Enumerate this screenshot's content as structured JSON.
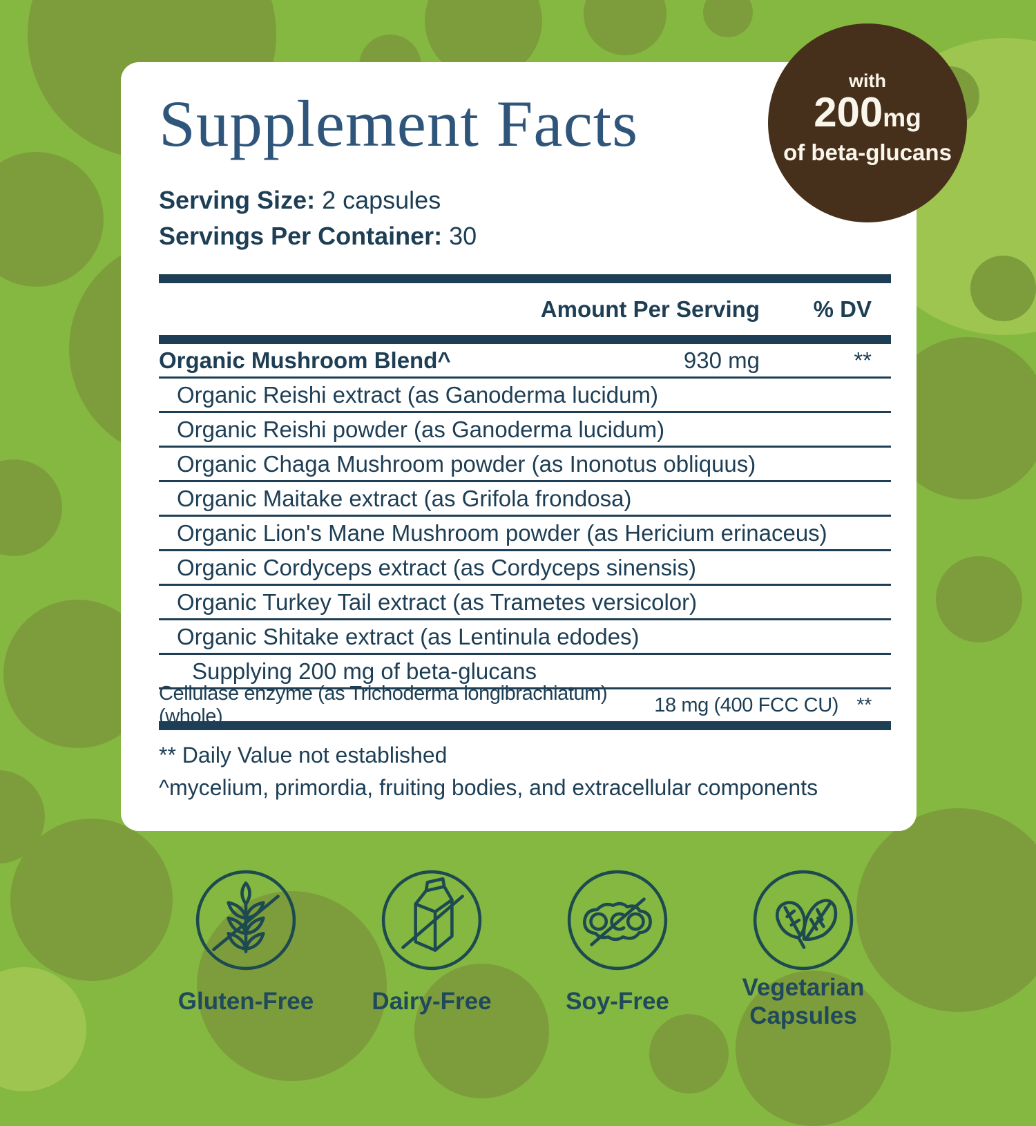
{
  "title": "Supplement Facts",
  "badge": {
    "line1": "with",
    "amount": "200",
    "unit": "mg",
    "line2": "of beta-glucans"
  },
  "serving": {
    "size_label": "Serving Size:",
    "size_value": "2 capsules",
    "container_label": "Servings Per Container:",
    "container_value": "30"
  },
  "table": {
    "headers": {
      "amount": "Amount Per Serving",
      "dv": "% DV"
    },
    "blend": {
      "name": "Organic Mushroom Blend^",
      "amount": "930 mg",
      "dv": "**"
    },
    "ingredients": [
      "Organic Reishi extract (as Ganoderma lucidum)",
      "Organic Reishi powder (as Ganoderma lucidum)",
      "Organic Chaga Mushroom powder (as Inonotus obliquus)",
      "Organic Maitake extract (as Grifola frondosa)",
      "Organic Lion's Mane Mushroom powder (as Hericium erinaceus)",
      "Organic Cordyceps extract (as Cordyceps sinensis)",
      "Organic Turkey Tail extract (as Trametes versicolor)",
      "Organic Shitake extract (as Lentinula edodes)"
    ],
    "supplying": "Supplying 200 mg of beta-glucans",
    "cellulase": {
      "name": "Cellulase enzyme (as Trichoderma longibrachiatum) (whole)",
      "amount": "18 mg (400 FCC CU)",
      "dv": "**"
    }
  },
  "footnotes": [
    "** Daily Value not established",
    "^mycelium, primordia, fruiting bodies, and extracellular components"
  ],
  "features": [
    {
      "label": "Gluten-Free",
      "icon": "wheat-crossed-icon"
    },
    {
      "label": "Dairy-Free",
      "icon": "milk-carton-crossed-icon"
    },
    {
      "label": "Soy-Free",
      "icon": "soybean-crossed-icon"
    },
    {
      "label": "Vegetarian Capsules",
      "icon": "leaves-icon"
    }
  ],
  "colors": {
    "background_green": "#85b840",
    "bubble_dark_green": "#7d9d3c",
    "bubble_light_green": "#9ec54f",
    "card_white": "#ffffff",
    "text_navy": "#1d3e54",
    "title_blue": "#2f567a",
    "badge_brown": "#47301b",
    "icon_teal": "#1d4a50"
  }
}
